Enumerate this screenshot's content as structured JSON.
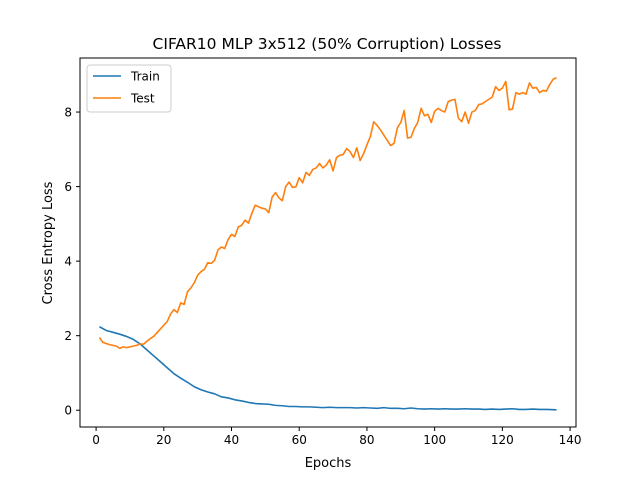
{
  "chart_data": {
    "type": "line",
    "title": "CIFAR10 MLP 3x512 (50% Corruption) Losses",
    "xlabel": "Epochs",
    "ylabel": "Cross Entropy Loss",
    "xlim": [
      -4.75,
      141.75
    ],
    "ylim": [
      -0.45,
      9.45
    ],
    "xticks": [
      0,
      20,
      40,
      60,
      80,
      100,
      120,
      140
    ],
    "yticks": [
      0,
      2,
      4,
      6,
      8
    ],
    "legend_position": "top-left",
    "grid": false,
    "series": [
      {
        "name": "Train",
        "color": "#1f77b4",
        "x": [
          1,
          3,
          5,
          7,
          9,
          11,
          13,
          15,
          17,
          19,
          21,
          23,
          25,
          27,
          29,
          31,
          33,
          35,
          37,
          39,
          41,
          43,
          45,
          47,
          49,
          51,
          53,
          55,
          57,
          59,
          61,
          63,
          65,
          67,
          69,
          71,
          73,
          75,
          77,
          79,
          81,
          83,
          85,
          87,
          89,
          91,
          93,
          95,
          97,
          99,
          101,
          103,
          105,
          107,
          109,
          111,
          113,
          115,
          117,
          119,
          121,
          123,
          125,
          127,
          129,
          131,
          133,
          136
        ],
        "values": [
          2.24,
          2.14,
          2.09,
          2.04,
          1.98,
          1.9,
          1.78,
          1.62,
          1.46,
          1.3,
          1.14,
          0.98,
          0.86,
          0.75,
          0.63,
          0.55,
          0.49,
          0.44,
          0.36,
          0.33,
          0.28,
          0.25,
          0.21,
          0.18,
          0.17,
          0.16,
          0.13,
          0.12,
          0.1,
          0.1,
          0.09,
          0.09,
          0.08,
          0.07,
          0.08,
          0.07,
          0.07,
          0.07,
          0.06,
          0.07,
          0.06,
          0.05,
          0.07,
          0.05,
          0.05,
          0.04,
          0.06,
          0.04,
          0.03,
          0.04,
          0.03,
          0.04,
          0.03,
          0.03,
          0.04,
          0.03,
          0.03,
          0.02,
          0.03,
          0.02,
          0.03,
          0.04,
          0.02,
          0.02,
          0.03,
          0.02,
          0.02,
          0.01
        ]
      },
      {
        "name": "Test",
        "color": "#ff7f0e",
        "x": [
          1,
          2,
          4,
          6,
          7,
          8,
          9,
          10,
          11,
          12,
          13,
          14,
          15,
          16,
          17,
          18,
          19,
          20,
          21,
          22,
          23,
          24,
          25,
          26,
          27,
          28,
          29,
          30,
          31,
          32,
          33,
          34,
          35,
          36,
          37,
          38,
          39,
          40,
          41,
          42,
          43,
          44,
          45,
          46,
          47,
          48,
          49,
          50,
          51,
          52,
          53,
          54,
          55,
          56,
          57,
          58,
          59,
          60,
          61,
          62,
          63,
          64,
          65,
          66,
          67,
          68,
          69,
          70,
          71,
          72,
          73,
          74,
          75,
          76,
          77,
          78,
          79,
          80,
          81,
          82,
          83,
          84,
          85,
          86,
          87,
          88,
          89,
          90,
          91,
          92,
          93,
          94,
          95,
          96,
          97,
          98,
          99,
          100,
          101,
          102,
          103,
          104,
          105,
          106,
          107,
          108,
          109,
          110,
          111,
          112,
          113,
          114,
          115,
          116,
          117,
          118,
          119,
          120,
          121,
          122,
          123,
          124,
          125,
          126,
          127,
          128,
          129,
          130,
          131,
          132,
          133,
          134,
          135,
          136
        ],
        "values": [
          1.95,
          1.82,
          1.76,
          1.72,
          1.66,
          1.7,
          1.68,
          1.7,
          1.72,
          1.74,
          1.78,
          1.77,
          1.85,
          1.92,
          1.98,
          2.08,
          2.18,
          2.28,
          2.38,
          2.58,
          2.7,
          2.62,
          2.88,
          2.84,
          3.18,
          3.28,
          3.42,
          3.62,
          3.72,
          3.78,
          3.96,
          3.94,
          4.02,
          4.3,
          4.38,
          4.34,
          4.58,
          4.72,
          4.66,
          4.92,
          4.96,
          5.1,
          5.02,
          5.28,
          5.5,
          5.46,
          5.42,
          5.4,
          5.3,
          5.72,
          5.84,
          5.7,
          5.62,
          6.0,
          6.12,
          5.98,
          5.99,
          6.24,
          6.1,
          6.38,
          6.3,
          6.46,
          6.5,
          6.62,
          6.5,
          6.58,
          6.72,
          6.42,
          6.78,
          6.84,
          6.86,
          7.02,
          6.94,
          6.78,
          7.04,
          6.7,
          6.88,
          7.12,
          7.34,
          7.74,
          7.64,
          7.52,
          7.38,
          7.24,
          7.1,
          7.16,
          7.58,
          7.72,
          8.04,
          7.3,
          7.32,
          7.56,
          7.72,
          8.1,
          7.9,
          7.94,
          7.72,
          8.02,
          8.1,
          8.04,
          8.0,
          8.28,
          8.32,
          8.34,
          7.84,
          7.74,
          8.0,
          7.7,
          8.0,
          8.04,
          8.2,
          8.22,
          8.28,
          8.34,
          8.4,
          8.68,
          8.58,
          8.64,
          8.82,
          8.06,
          8.08,
          8.52,
          8.48,
          8.52,
          8.48,
          8.78,
          8.64,
          8.66,
          8.52,
          8.58,
          8.56,
          8.74,
          8.88,
          8.92
        ]
      }
    ]
  }
}
